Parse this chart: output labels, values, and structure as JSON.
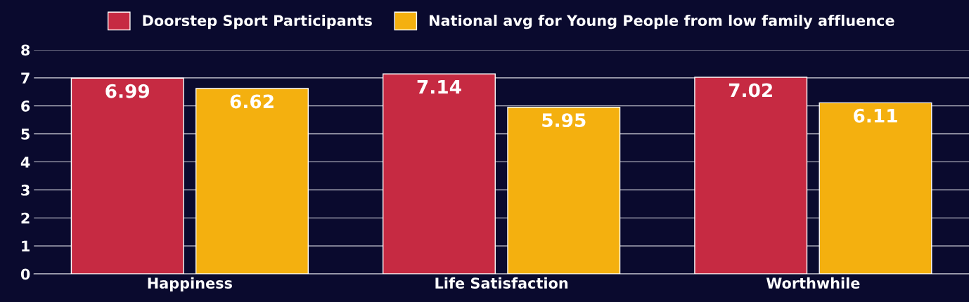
{
  "chart_data": {
    "type": "bar",
    "categories": [
      "Happiness",
      "Life Satisfaction",
      "Worthwhile"
    ],
    "series": [
      {
        "name": "Doorstep Sport Participants",
        "color": "#c62a42",
        "values": [
          6.99,
          7.14,
          7.02
        ]
      },
      {
        "name": "National avg for Young People from low family affluence",
        "color": "#f4b00f",
        "values": [
          6.62,
          5.95,
          6.11
        ]
      }
    ],
    "ylim": [
      0,
      8
    ],
    "yticks": [
      0,
      1,
      2,
      3,
      4,
      5,
      6,
      7,
      8
    ],
    "grid": "y",
    "legend": "top",
    "data_labels": true
  }
}
